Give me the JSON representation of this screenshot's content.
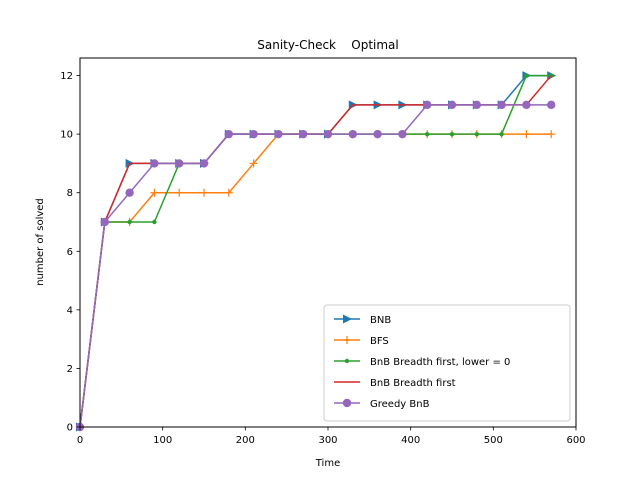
{
  "chart_data": {
    "type": "line",
    "title": "Sanity-Check    Optimal",
    "xlabel": "Time",
    "ylabel": "number of solved",
    "xlim": [
      0,
      600
    ],
    "ylim": [
      0,
      12.6
    ],
    "xticks": [
      0,
      100,
      200,
      300,
      400,
      500,
      600
    ],
    "yticks": [
      0,
      2,
      4,
      6,
      8,
      10,
      12
    ],
    "grid": false,
    "legend_position": "lower-right",
    "x": [
      0,
      30,
      60,
      90,
      120,
      150,
      180,
      210,
      240,
      270,
      300,
      330,
      360,
      390,
      420,
      450,
      480,
      510,
      540,
      570
    ],
    "series": [
      {
        "name": "BNB",
        "color": "#1f77b4",
        "marker": "triangle-right",
        "values": [
          0,
          7,
          9,
          9,
          9,
          9,
          10,
          10,
          10,
          10,
          10,
          11,
          11,
          11,
          11,
          11,
          11,
          11,
          12,
          12
        ]
      },
      {
        "name": "BFS",
        "color": "#ff7f0e",
        "marker": "plus",
        "values": [
          0,
          7,
          7,
          8,
          8,
          8,
          8,
          9,
          10,
          10,
          10,
          10,
          10,
          10,
          10,
          10,
          10,
          10,
          10,
          10
        ]
      },
      {
        "name": "BnB Breadth first, lower = 0",
        "color": "#2ca02c",
        "marker": "dot",
        "values": [
          0,
          7,
          7,
          7,
          9,
          9,
          10,
          10,
          10,
          10,
          10,
          10,
          10,
          10,
          10,
          10,
          10,
          10,
          12,
          12
        ]
      },
      {
        "name": "BnB Breadth first",
        "color": "#d62728",
        "marker": "none",
        "values": [
          0,
          7,
          9,
          9,
          9,
          9,
          10,
          10,
          10,
          10,
          10,
          11,
          11,
          11,
          11,
          11,
          11,
          11,
          11,
          12
        ]
      },
      {
        "name": "Greedy BnB",
        "color": "#9467bd",
        "marker": "circle",
        "values": [
          0,
          7,
          8,
          9,
          9,
          9,
          10,
          10,
          10,
          10,
          10,
          10,
          10,
          10,
          11,
          11,
          11,
          11,
          11,
          11
        ]
      }
    ]
  }
}
